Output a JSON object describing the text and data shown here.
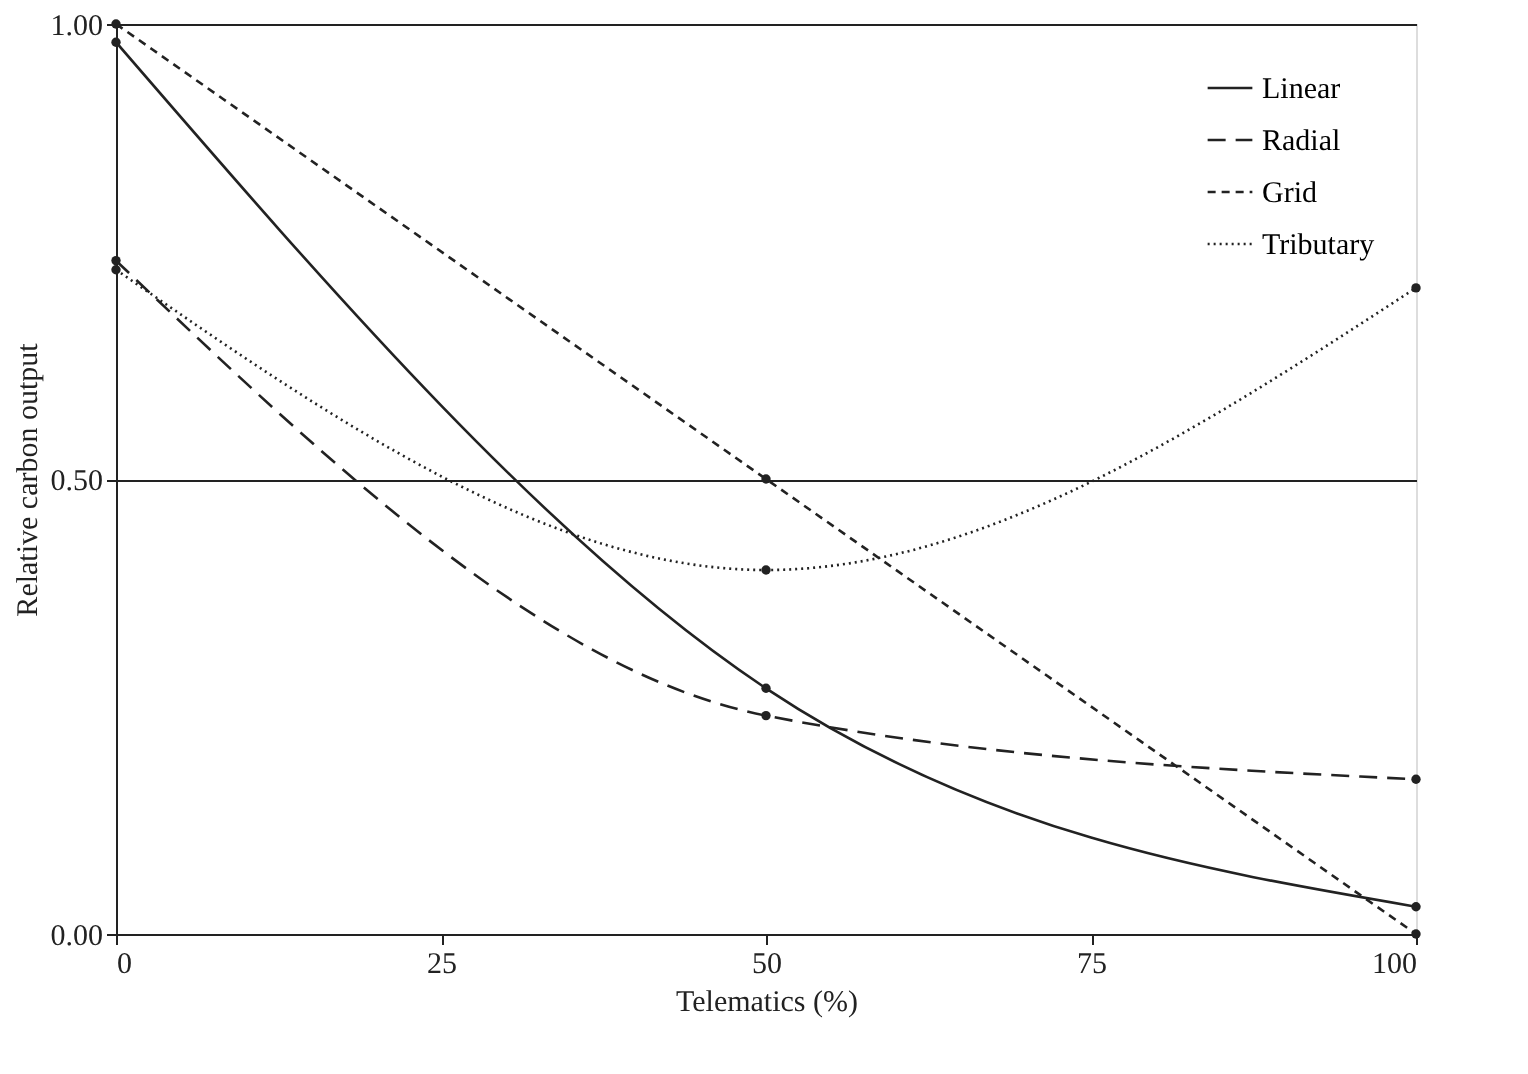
{
  "chart_data": {
    "type": "line",
    "xlabel": "Telematics (%)",
    "ylabel": "Relative carbon output",
    "x": [
      0,
      50,
      100
    ],
    "series": [
      {
        "name": "Linear",
        "color": "#222222",
        "values": [
          0.98,
          0.27,
          0.03
        ],
        "line_style": "solid"
      },
      {
        "name": "Radial",
        "color": "#222222",
        "values": [
          0.74,
          0.24,
          0.17
        ],
        "line_style": "dashed"
      },
      {
        "name": "Grid",
        "color": "#222222",
        "values": [
          1.0,
          0.5,
          0.0
        ],
        "line_style": "dashed"
      },
      {
        "name": "Tributary",
        "color": "#222222",
        "values": [
          0.73,
          0.4,
          0.71
        ],
        "line_style": "dotted"
      }
    ],
    "xlim": [
      0,
      100
    ],
    "xticks": [
      0,
      25,
      50,
      75,
      100
    ],
    "ylim": [
      0,
      1
    ],
    "yticks": [
      {
        "value": 0,
        "label": "0.00"
      },
      {
        "value": 0.5,
        "label": "0.50"
      },
      {
        "value": 1,
        "label": "1.00"
      }
    ],
    "grid": "y",
    "legend": "top right",
    "marker": "circle"
  }
}
